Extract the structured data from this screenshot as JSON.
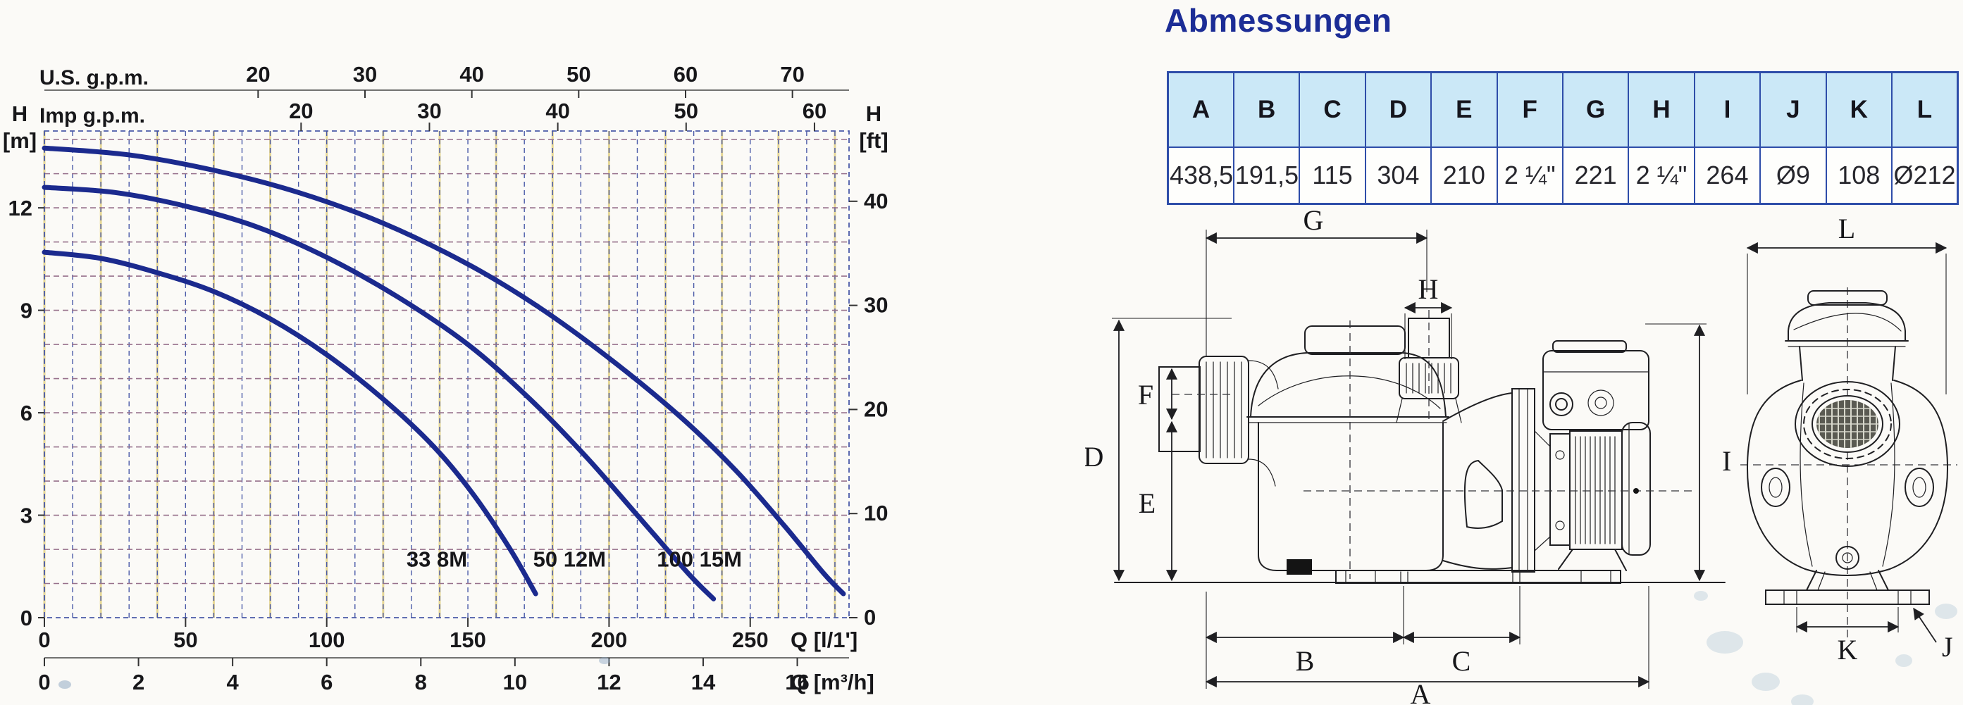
{
  "dimensions": {
    "title": "Abmessungen",
    "headers": [
      "A",
      "B",
      "C",
      "D",
      "E",
      "F",
      "G",
      "H",
      "I",
      "J",
      "K",
      "L"
    ],
    "values": [
      "438,5",
      "191,5",
      "115",
      "304",
      "210",
      "2 ¼\"",
      "221",
      "2 ¼\"",
      "264",
      "Ø9",
      "108",
      "Ø212"
    ]
  },
  "drawing": {
    "labels": {
      "A": "A",
      "B": "B",
      "C": "C",
      "D": "D",
      "E": "E",
      "F": "F",
      "G": "G",
      "H": "H",
      "I": "I",
      "J": "J",
      "K": "K",
      "L": "L"
    }
  },
  "chart_data": {
    "type": "line",
    "title": "",
    "x_axes": {
      "primary": {
        "label": "Q [l/1']",
        "ticks": [
          0,
          50,
          100,
          150,
          200,
          250
        ],
        "range": [
          0,
          285
        ]
      },
      "secondary": {
        "label": "Q [m³/h]",
        "ticks": [
          0,
          2,
          4,
          6,
          8,
          10,
          12,
          14,
          16
        ],
        "l_per_min_per_unit": 16.6667
      },
      "top_us": {
        "label": "U.S. g.p.m.",
        "ticks": [
          20,
          30,
          40,
          50,
          60,
          70
        ],
        "l_per_min_per_unit": 3.785
      },
      "top_imp": {
        "label": "Imp g.p.m.",
        "ticks": [
          20,
          30,
          40,
          50,
          60
        ],
        "l_per_min_per_unit": 4.546
      }
    },
    "y_axes": {
      "left": {
        "label_line1": "H",
        "label_line2": "[m]",
        "ticks": [
          0,
          3,
          6,
          9,
          12
        ],
        "range": [
          0,
          14.25
        ]
      },
      "right": {
        "label_line1": "H",
        "label_line2": "[ft]",
        "ticks": [
          0,
          10,
          20,
          30,
          40
        ],
        "m_per_unit": 0.3048
      }
    },
    "grid": {
      "vertical_step_l_min": 10,
      "horizontal_step_m": 1
    },
    "legend_position": "inside-bottom",
    "series": [
      {
        "name": "33 8M",
        "label_at": {
          "q": 139,
          "h": 1.5
        },
        "points": [
          [
            0,
            10.7
          ],
          [
            20,
            10.52
          ],
          [
            40,
            10.1
          ],
          [
            60,
            9.55
          ],
          [
            80,
            8.75
          ],
          [
            100,
            7.7
          ],
          [
            120,
            6.4
          ],
          [
            138,
            5.0
          ],
          [
            152,
            3.6
          ],
          [
            165,
            2.0
          ],
          [
            174,
            0.7
          ]
        ]
      },
      {
        "name": "50 12M",
        "label_at": {
          "q": 186,
          "h": 1.5
        },
        "points": [
          [
            0,
            12.6
          ],
          [
            25,
            12.45
          ],
          [
            50,
            12.05
          ],
          [
            75,
            11.45
          ],
          [
            100,
            10.55
          ],
          [
            125,
            9.4
          ],
          [
            150,
            8.0
          ],
          [
            172,
            6.4
          ],
          [
            192,
            4.7
          ],
          [
            210,
            3.0
          ],
          [
            228,
            1.3
          ],
          [
            237,
            0.55
          ]
        ]
      },
      {
        "name": "100 15M",
        "label_at": {
          "q": 232,
          "h": 1.5
        },
        "points": [
          [
            0,
            13.75
          ],
          [
            30,
            13.55
          ],
          [
            60,
            13.1
          ],
          [
            90,
            12.45
          ],
          [
            120,
            11.55
          ],
          [
            150,
            10.35
          ],
          [
            175,
            9.1
          ],
          [
            200,
            7.6
          ],
          [
            225,
            5.9
          ],
          [
            245,
            4.3
          ],
          [
            262,
            2.7
          ],
          [
            276,
            1.3
          ],
          [
            283,
            0.7
          ]
        ]
      }
    ],
    "colors": {
      "curve": "#1b2a8e",
      "grid_blue": "#4a5aa8",
      "grid_yellow": "#e6d795",
      "grid_h": "#97718c",
      "axis": "#444444",
      "text": "#17171a"
    }
  }
}
